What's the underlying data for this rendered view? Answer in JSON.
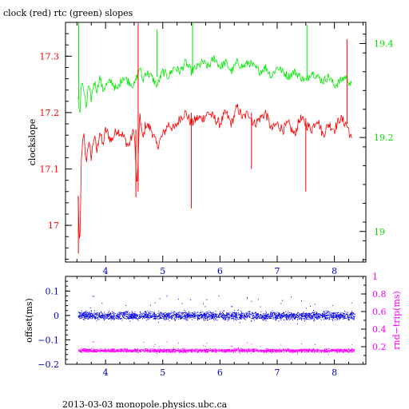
{
  "colors": {
    "clock": "#ff0000",
    "rtc": "#00ee00",
    "offset": "#0000ee",
    "rnd_trip": "#ff00ff",
    "axis": "#000000",
    "left_tick_labels": "#ff0000",
    "right_tick_labels": "#00dd00",
    "x_tick_labels": "#0000cc",
    "offset_tick_labels": "#0000cc",
    "rtt_tick_labels": "#ff00ff"
  },
  "title": "clock (red) rtc (green) slopes",
  "footer": "2013-03-03  monopole.physics.ubc.ca",
  "chart_data": [
    {
      "type": "line",
      "title": "clock (red) rtc (green) slopes",
      "xlabel": "",
      "ylabel": "clockslope",
      "y2label": "",
      "xlim": [
        3.3,
        8.55
      ],
      "ylim": [
        16.935,
        17.36
      ],
      "y2lim": [
        18.935,
        19.445
      ],
      "xticks": [
        "4",
        "5",
        "6",
        "7",
        "8"
      ],
      "yticks": [
        "17",
        "17.1",
        "17.2",
        "17.3"
      ],
      "y2ticks": [
        "19",
        "19.2",
        "19.4"
      ],
      "series": [
        {
          "axis": "left",
          "color": "#ff0000",
          "x": [
            3.52,
            3.55,
            3.58,
            3.62,
            3.66,
            3.7,
            3.75,
            3.8,
            3.85,
            3.9,
            3.95,
            4.0,
            4.1,
            4.2,
            4.3,
            4.4,
            4.5,
            4.55,
            4.6,
            4.65,
            4.7,
            4.8,
            4.9,
            5.0,
            5.1,
            5.2,
            5.3,
            5.4,
            5.5,
            5.6,
            5.7,
            5.8,
            5.9,
            6.0,
            6.1,
            6.2,
            6.3,
            6.4,
            6.5,
            6.6,
            6.7,
            6.8,
            6.9,
            7.0,
            7.1,
            7.2,
            7.3,
            7.4,
            7.5,
            7.6,
            7.7,
            7.8,
            7.9,
            8.0,
            8.1,
            8.2,
            8.25,
            8.3
          ],
          "y": [
            17.05,
            16.95,
            17.13,
            17.16,
            17.11,
            17.15,
            17.12,
            17.16,
            17.13,
            17.17,
            17.14,
            17.17,
            17.15,
            17.17,
            17.16,
            17.14,
            17.17,
            17.06,
            17.2,
            17.15,
            17.18,
            17.17,
            17.14,
            17.16,
            17.18,
            17.17,
            17.19,
            17.2,
            17.18,
            17.19,
            17.19,
            17.2,
            17.19,
            17.18,
            17.2,
            17.18,
            17.21,
            17.19,
            17.2,
            17.18,
            17.19,
            17.2,
            17.17,
            17.18,
            17.17,
            17.18,
            17.16,
            17.19,
            17.18,
            17.17,
            17.19,
            17.16,
            17.18,
            17.17,
            17.19,
            17.18,
            17.17,
            17.15
          ]
        },
        {
          "axis": "right",
          "color": "#00ee00",
          "x": [
            3.52,
            3.55,
            3.58,
            3.62,
            3.66,
            3.7,
            3.75,
            3.8,
            3.85,
            3.9,
            3.95,
            4.0,
            4.1,
            4.2,
            4.3,
            4.4,
            4.5,
            4.55,
            4.6,
            4.65,
            4.7,
            4.8,
            4.9,
            5.0,
            5.1,
            5.2,
            5.3,
            5.4,
            5.5,
            5.6,
            5.7,
            5.8,
            5.9,
            6.0,
            6.1,
            6.2,
            6.3,
            6.4,
            6.5,
            6.6,
            6.7,
            6.8,
            6.9,
            7.0,
            7.1,
            7.2,
            7.3,
            7.4,
            7.5,
            7.6,
            7.7,
            7.8,
            7.9,
            8.0,
            8.1,
            8.2,
            8.25,
            8.3
          ],
          "y": [
            19.28,
            19.25,
            19.32,
            19.3,
            19.26,
            19.31,
            19.28,
            19.32,
            19.3,
            19.33,
            19.3,
            19.31,
            19.32,
            19.3,
            19.33,
            19.32,
            19.31,
            19.33,
            19.35,
            19.32,
            19.34,
            19.33,
            19.31,
            19.34,
            19.33,
            19.35,
            19.34,
            19.36,
            19.34,
            19.35,
            19.36,
            19.35,
            19.37,
            19.35,
            19.36,
            19.34,
            19.36,
            19.35,
            19.36,
            19.35,
            19.34,
            19.35,
            19.33,
            19.35,
            19.34,
            19.33,
            19.34,
            19.33,
            19.32,
            19.34,
            19.33,
            19.32,
            19.33,
            19.31,
            19.32,
            19.33,
            19.32,
            19.31
          ]
        }
      ],
      "spikes": [
        {
          "axis": "left",
          "x": 3.525,
          "y": 16.95
        },
        {
          "axis": "left",
          "x": 4.53,
          "y": 17.05
        },
        {
          "axis": "left",
          "x": 4.57,
          "y": 17.37
        },
        {
          "axis": "left",
          "x": 5.5,
          "y": 17.03
        },
        {
          "axis": "left",
          "x": 6.55,
          "y": 17.1
        },
        {
          "axis": "left",
          "x": 7.5,
          "y": 17.06
        },
        {
          "axis": "left",
          "x": 8.22,
          "y": 17.33
        },
        {
          "axis": "right",
          "x": 3.53,
          "y": 19.45
        },
        {
          "axis": "right",
          "x": 5.52,
          "y": 19.48
        },
        {
          "axis": "right",
          "x": 7.52,
          "y": 19.44
        },
        {
          "axis": "right",
          "x": 4.9,
          "y": 19.43
        }
      ]
    },
    {
      "type": "scatter",
      "title": "",
      "xlabel": "",
      "ylabel": "offset(ms)",
      "y2label": "rnd−trip(ms)",
      "xlim": [
        3.3,
        8.55
      ],
      "ylim": [
        -0.2,
        0.16
      ],
      "y2lim": [
        0.0,
        1.0
      ],
      "xticks": [
        "4",
        "5",
        "6",
        "7",
        "8"
      ],
      "yticks": [
        "−0.2",
        "−0.1",
        "0",
        "0.1"
      ],
      "y2ticks": [
        "0.2",
        "0.4",
        "0.6",
        "0.8",
        "1"
      ],
      "series": [
        {
          "name": "",
          "axis": "left",
          "color": "#0000ee",
          "x_range": [
            3.52,
            8.35
          ],
          "center": 0.0,
          "spread": 0.02
        },
        {
          "name": "",
          "axis": "right",
          "color": "#ff00ff",
          "x_range": [
            3.52,
            8.35
          ],
          "center": 0.16,
          "spread": 0.025
        }
      ]
    }
  ]
}
